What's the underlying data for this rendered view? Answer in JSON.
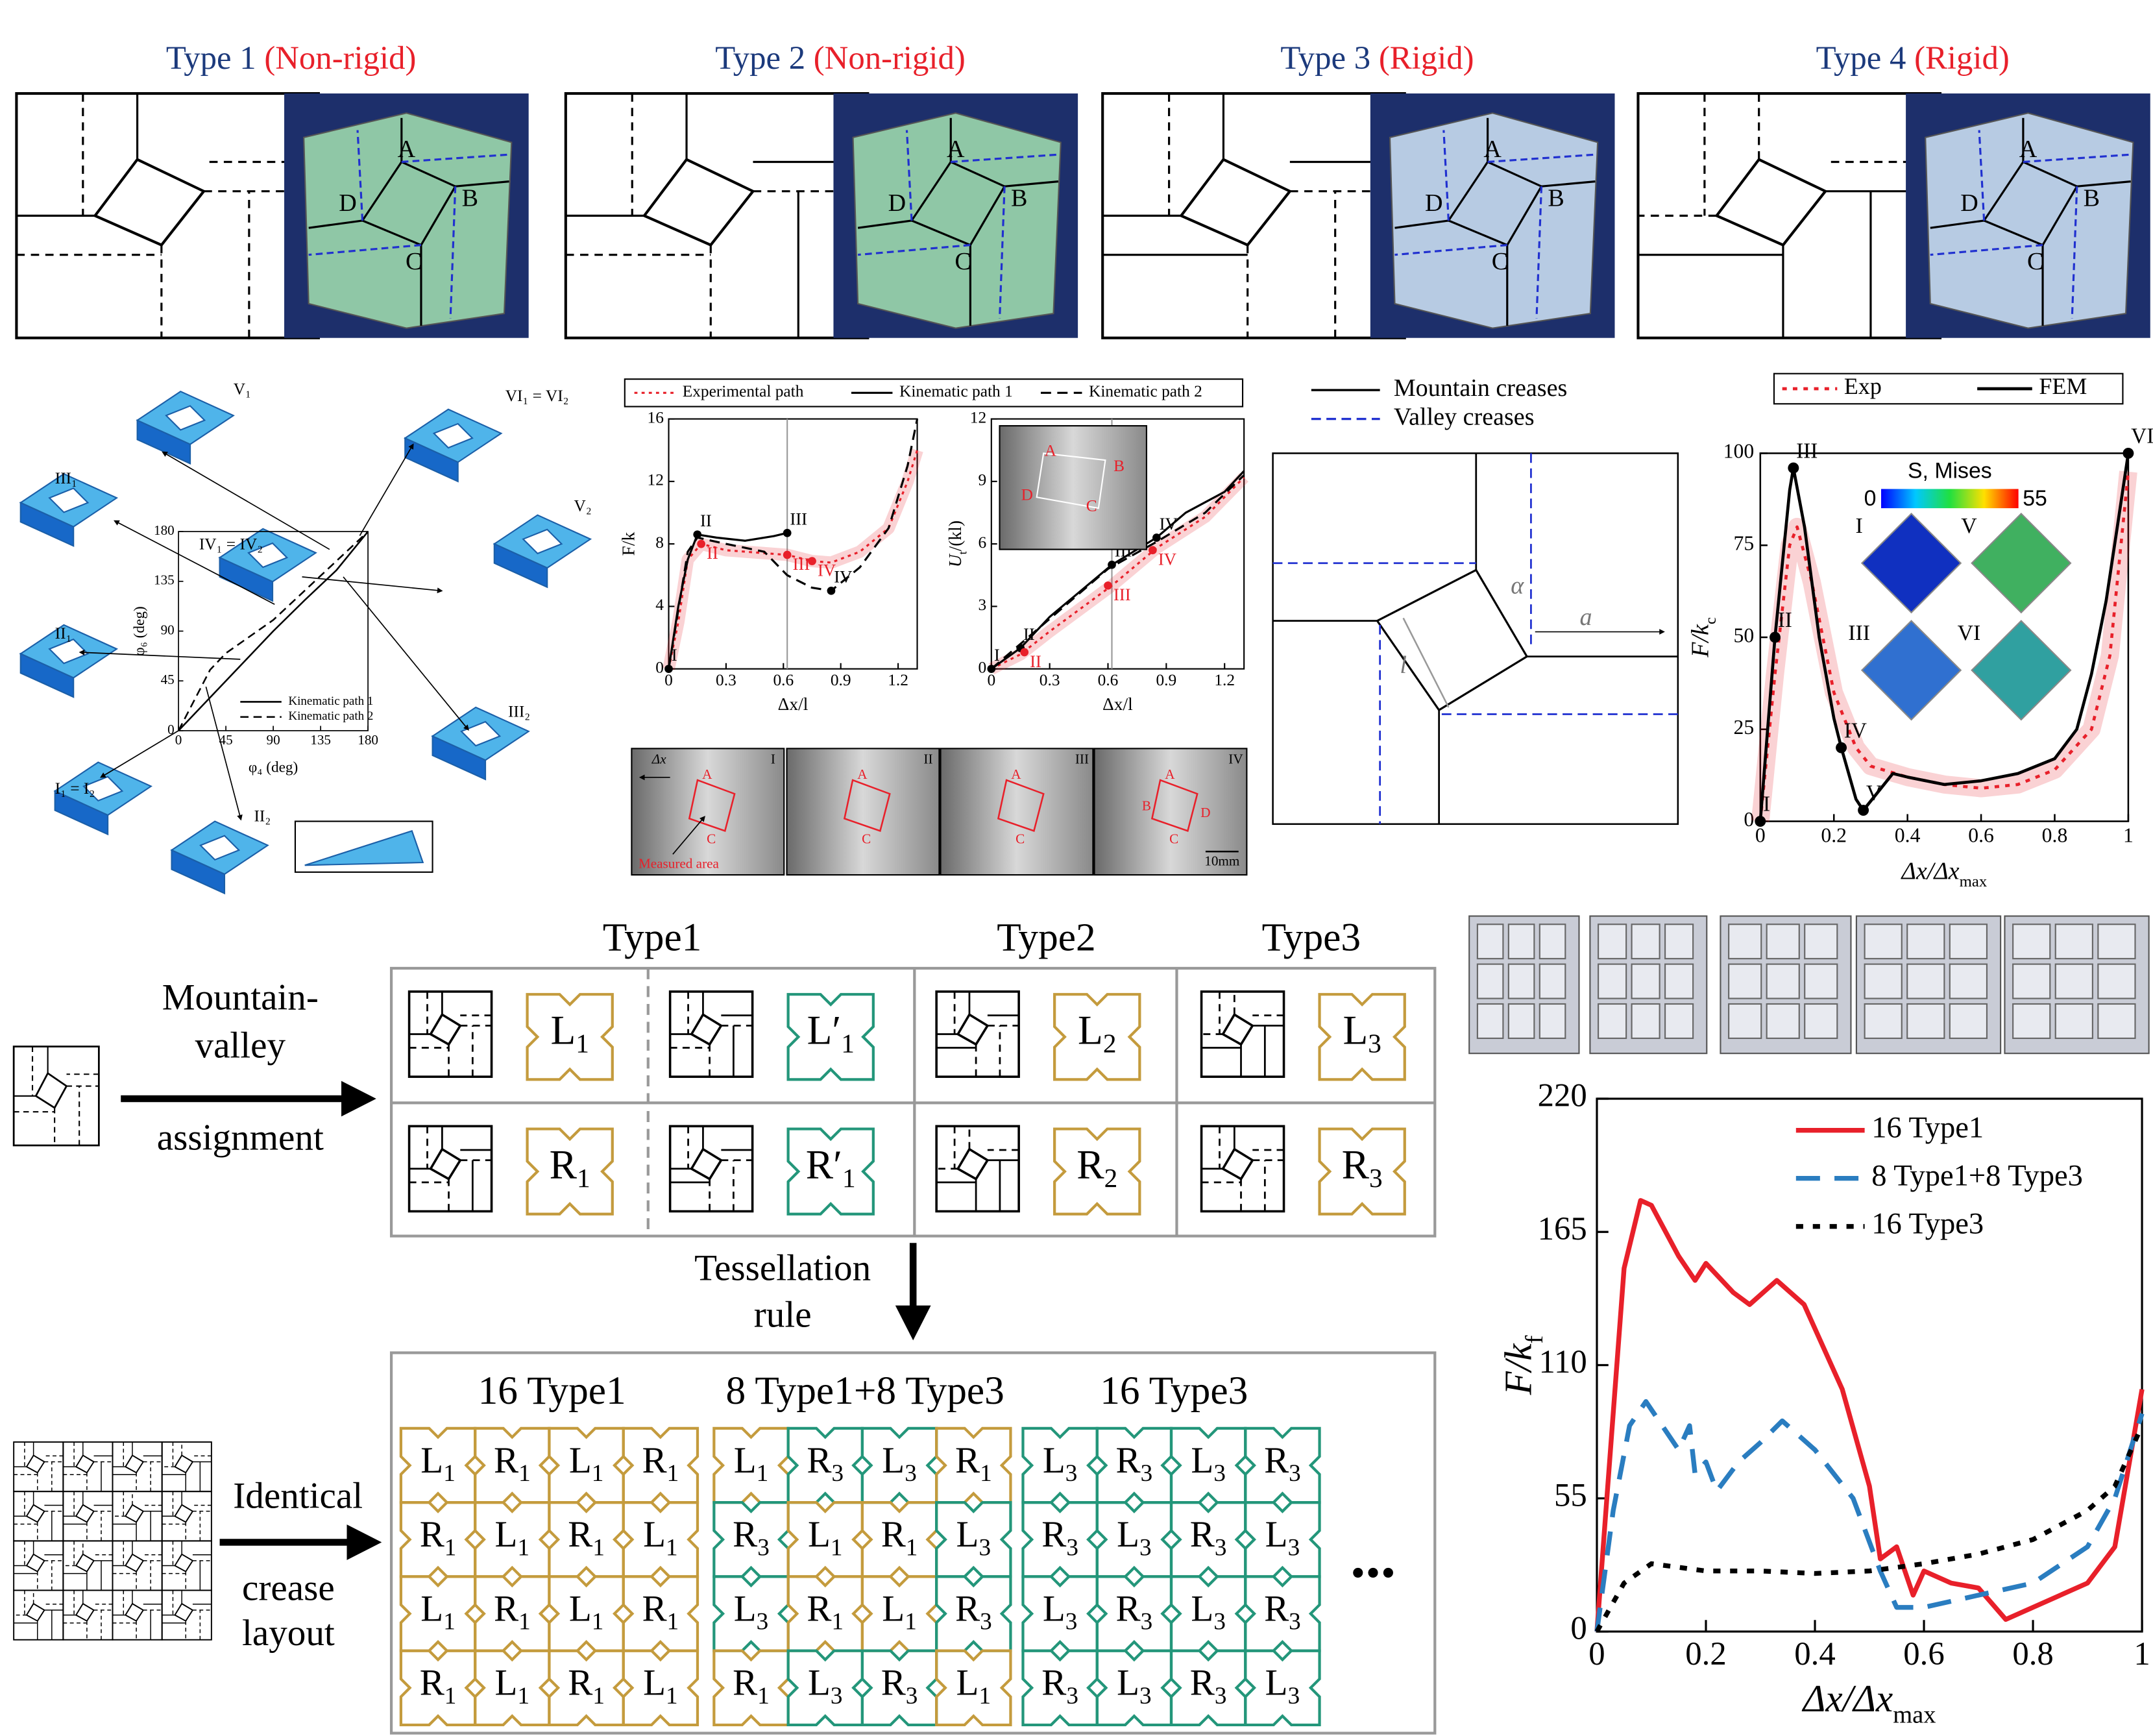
{
  "top_types": [
    {
      "name": "Type 1",
      "mode": "(Non-rigid)",
      "color": "#8fc7a6",
      "labels": [
        "A",
        "B",
        "C",
        "D"
      ]
    },
    {
      "name": "Type 2",
      "mode": "(Non-rigid)",
      "color": "#8fc7a6",
      "labels": [
        "A",
        "B",
        "C",
        "D"
      ]
    },
    {
      "name": "Type 3",
      "mode": "(Rigid)",
      "color": "#b7cbe3",
      "labels": [
        "A",
        "B",
        "C",
        "D"
      ]
    },
    {
      "name": "Type 4",
      "mode": "(Rigid)",
      "color": "#b7cbe3",
      "labels": [
        "A",
        "B",
        "C",
        "D"
      ]
    }
  ],
  "kinematic_labels": [
    "V₁",
    "VI₁ = VI₂",
    "III₁",
    "IV₁ = IV₂",
    "V₂",
    "II₁",
    "III₂",
    "I₁ = I₂",
    "II₂"
  ],
  "strip": {
    "frames": [
      "I",
      "II",
      "III",
      "IV"
    ],
    "measured": "Measured area",
    "scale": "10mm",
    "dx": "Δx",
    "points": [
      "A",
      "B",
      "C",
      "D"
    ]
  },
  "crease_diagram": {
    "legend": [
      "Mountain creases",
      "Valley creases"
    ],
    "alpha": "α",
    "a": "a",
    "l": "l"
  },
  "fem_inset": {
    "colorbar_title": "S, Mises",
    "colorbar_min": 0,
    "colorbar_max": 55,
    "insets": [
      "I",
      "V",
      "III",
      "VI"
    ]
  },
  "assignment": {
    "arrow_text": [
      "Mountain-",
      "valley",
      "assignment"
    ],
    "headings": [
      "Type1",
      "Type2",
      "Type3"
    ],
    "tiles": [
      [
        {
          "l": "L",
          "s": "1",
          "c": "#c49b3d"
        },
        {
          "l": "L′",
          "s": "1",
          "c": "#23967a"
        },
        {
          "l": "L",
          "s": "2",
          "c": "#c49b3d"
        },
        {
          "l": "L",
          "s": "3",
          "c": "#c49b3d"
        }
      ],
      [
        {
          "l": "R",
          "s": "1",
          "c": "#c49b3d"
        },
        {
          "l": "R′",
          "s": "1",
          "c": "#23967a"
        },
        {
          "l": "R",
          "s": "2",
          "c": "#c49b3d"
        },
        {
          "l": "R",
          "s": "3",
          "c": "#c49b3d"
        }
      ]
    ]
  },
  "tessellation": {
    "text": [
      "Tessellation",
      "rule"
    ]
  },
  "layout": {
    "text": [
      "Identical",
      "crease",
      "layout"
    ],
    "ellipsis": "...",
    "tile_color": {
      "1": "#c49b3d",
      "3": "#23967a"
    },
    "grids": [
      {
        "title": "16 Type1",
        "rows": [
          [
            [
              "L",
              "1"
            ],
            [
              "R",
              "1"
            ],
            [
              "L",
              "1"
            ],
            [
              "R",
              "1"
            ]
          ],
          [
            [
              "R",
              "1"
            ],
            [
              "L",
              "1"
            ],
            [
              "R",
              "1"
            ],
            [
              "L",
              "1"
            ]
          ],
          [
            [
              "L",
              "1"
            ],
            [
              "R",
              "1"
            ],
            [
              "L",
              "1"
            ],
            [
              "R",
              "1"
            ]
          ],
          [
            [
              "R",
              "1"
            ],
            [
              "L",
              "1"
            ],
            [
              "R",
              "1"
            ],
            [
              "L",
              "1"
            ]
          ]
        ]
      },
      {
        "title": "8 Type1+8 Type3",
        "rows": [
          [
            [
              "L",
              "1"
            ],
            [
              "R",
              "3"
            ],
            [
              "L",
              "3"
            ],
            [
              "R",
              "1"
            ]
          ],
          [
            [
              "R",
              "3"
            ],
            [
              "L",
              "1"
            ],
            [
              "R",
              "1"
            ],
            [
              "L",
              "3"
            ]
          ],
          [
            [
              "L",
              "3"
            ],
            [
              "R",
              "1"
            ],
            [
              "L",
              "1"
            ],
            [
              "R",
              "3"
            ]
          ],
          [
            [
              "R",
              "1"
            ],
            [
              "L",
              "3"
            ],
            [
              "R",
              "3"
            ],
            [
              "L",
              "1"
            ]
          ]
        ]
      },
      {
        "title": "16 Type3",
        "rows": [
          [
            [
              "L",
              "3"
            ],
            [
              "R",
              "3"
            ],
            [
              "L",
              "3"
            ],
            [
              "R",
              "3"
            ]
          ],
          [
            [
              "R",
              "3"
            ],
            [
              "L",
              "3"
            ],
            [
              "R",
              "3"
            ],
            [
              "L",
              "3"
            ]
          ],
          [
            [
              "L",
              "3"
            ],
            [
              "R",
              "3"
            ],
            [
              "L",
              "3"
            ],
            [
              "R",
              "3"
            ]
          ],
          [
            [
              "R",
              "3"
            ],
            [
              "L",
              "3"
            ],
            [
              "R",
              "3"
            ],
            [
              "L",
              "3"
            ]
          ]
        ]
      }
    ]
  },
  "chart_data": [
    {
      "type": "line",
      "xlabel": "φ₄ (deg)",
      "ylabel": "φ₆ (deg)",
      "xlim": [
        0,
        180
      ],
      "ylim": [
        0,
        180
      ],
      "xticks": [
        0,
        45,
        90,
        135,
        180
      ],
      "yticks": [
        0,
        45,
        90,
        135,
        180
      ],
      "legend": "lower right",
      "series": [
        {
          "name": "Kinematic path 1",
          "color": "#000000",
          "dash": "solid",
          "x": [
            0,
            45,
            90,
            120,
            150,
            180
          ],
          "values": [
            0,
            45,
            90,
            118,
            145,
            180
          ]
        },
        {
          "name": "Kinematic path 2",
          "color": "#000000",
          "dash": "dashed",
          "x": [
            0,
            30,
            45,
            90,
            135,
            180
          ],
          "values": [
            0,
            55,
            70,
            100,
            140,
            180
          ]
        }
      ]
    },
    {
      "type": "line",
      "xlabel": "Δx/l",
      "ylabel": "F/k",
      "xlim": [
        0,
        1.3
      ],
      "ylim": [
        0,
        16
      ],
      "xticks": [
        0,
        0.3,
        0.6,
        0.9,
        1.2
      ],
      "yticks": [
        0,
        4,
        8,
        12,
        16
      ],
      "vline": 0.62,
      "legend": "above",
      "series": [
        {
          "name": "Experimental path",
          "color": "#e8202a",
          "dash": "dotted",
          "band": true,
          "x": [
            0,
            0.05,
            0.1,
            0.17,
            0.3,
            0.62,
            0.75,
            0.85,
            1.0,
            1.15,
            1.25,
            1.3
          ],
          "values": [
            0,
            3,
            7,
            8,
            7.6,
            7.3,
            6.9,
            6.8,
            7.5,
            9,
            12,
            14
          ]
        },
        {
          "name": "Kinematic path 1",
          "color": "#000000",
          "dash": "solid",
          "x": [
            0,
            0.05,
            0.1,
            0.15,
            0.25,
            0.4,
            0.55,
            0.62
          ],
          "values": [
            0,
            4,
            7,
            8.6,
            8.4,
            8.2,
            8.5,
            8.7
          ]
        },
        {
          "name": "Kinematic path 2",
          "color": "#000000",
          "dash": "dashed",
          "x": [
            0,
            0.1,
            0.15,
            0.3,
            0.5,
            0.62,
            0.75,
            0.85,
            1.0,
            1.15,
            1.25,
            1.3
          ],
          "values": [
            0,
            7.5,
            8.4,
            8,
            7.5,
            6,
            5.2,
            5,
            6.5,
            9,
            13,
            16
          ]
        }
      ],
      "points": [
        {
          "label": "I",
          "x": 0,
          "y": 0,
          "color": "#000000"
        },
        {
          "label": "II",
          "x": 0.15,
          "y": 8.6,
          "color": "#000000"
        },
        {
          "label": "III",
          "x": 0.62,
          "y": 8.7,
          "color": "#000000"
        },
        {
          "label": "IV",
          "x": 0.85,
          "y": 5,
          "color": "#000000"
        },
        {
          "label": "II",
          "x": 0.17,
          "y": 8,
          "color": "#e8202a"
        },
        {
          "label": "III",
          "x": 0.62,
          "y": 7.3,
          "color": "#e8202a"
        },
        {
          "label": "IV",
          "x": 0.75,
          "y": 6.9,
          "color": "#e8202a"
        }
      ]
    },
    {
      "type": "line",
      "xlabel": "Δx/l",
      "ylabel": {
        "text": "U",
        "sub": "t",
        "tail": "/(kl)"
      },
      "xlim": [
        0,
        1.3
      ],
      "ylim": [
        0,
        12
      ],
      "xticks": [
        0,
        0.3,
        0.6,
        0.9,
        1.2
      ],
      "yticks": [
        0,
        3,
        6,
        9,
        12
      ],
      "vline": 0.62,
      "series": [
        {
          "color": "#e8202a",
          "dash": "dotted",
          "band": true,
          "x": [
            0,
            0.15,
            0.3,
            0.62,
            0.85,
            1.1,
            1.3
          ],
          "values": [
            0,
            0.7,
            1.8,
            4,
            5.8,
            7.3,
            9.2
          ]
        },
        {
          "color": "#000000",
          "dash": "solid",
          "x": [
            0,
            0.15,
            0.3,
            0.62,
            0.85,
            1.0,
            1.2,
            1.3
          ],
          "values": [
            0,
            1,
            2.5,
            5,
            6.3,
            7.5,
            8.5,
            9.5
          ]
        },
        {
          "color": "#000000",
          "dash": "dashed",
          "x": [
            0,
            0.6,
            0.85,
            1.1,
            1.3
          ],
          "values": [
            0,
            4.8,
            6.1,
            7.5,
            9.3
          ]
        }
      ],
      "points": [
        {
          "label": "I",
          "x": 0,
          "y": 0,
          "color": "#000000"
        },
        {
          "label": "II",
          "x": 0.15,
          "y": 1,
          "color": "#000000"
        },
        {
          "label": "III",
          "x": 0.62,
          "y": 5,
          "color": "#000000"
        },
        {
          "label": "IV",
          "x": 0.85,
          "y": 6.3,
          "color": "#000000"
        },
        {
          "label": "II",
          "x": 0.17,
          "y": 0.8,
          "color": "#e8202a"
        },
        {
          "label": "III",
          "x": 0.6,
          "y": 4,
          "color": "#e8202a"
        },
        {
          "label": "IV",
          "x": 0.83,
          "y": 5.7,
          "color": "#e8202a"
        }
      ]
    },
    {
      "type": "line",
      "xlabel": {
        "text": "Δx/Δx",
        "sub": "max"
      },
      "ylabel": {
        "text": "F/k",
        "sub": "c"
      },
      "xlim": [
        0,
        1
      ],
      "ylim": [
        0,
        100
      ],
      "xticks": [
        0,
        0.2,
        0.4,
        0.6,
        0.8,
        1
      ],
      "yticks": [
        0,
        25,
        50,
        75,
        100
      ],
      "legend": "above",
      "series": [
        {
          "name": "Exp",
          "color": "#e8202a",
          "dash": "dotted",
          "band": true,
          "x": [
            0,
            0.04,
            0.08,
            0.1,
            0.14,
            0.2,
            0.26,
            0.3,
            0.4,
            0.5,
            0.6,
            0.7,
            0.8,
            0.9,
            0.95,
            1
          ],
          "values": [
            0,
            40,
            75,
            80,
            65,
            35,
            20,
            15,
            12,
            10,
            9,
            10,
            14,
            25,
            45,
            95
          ]
        },
        {
          "name": "FEM",
          "color": "#000000",
          "dash": "solid",
          "x": [
            0,
            0.04,
            0.08,
            0.09,
            0.12,
            0.16,
            0.2,
            0.22,
            0.26,
            0.28,
            0.32,
            0.36,
            0.4,
            0.5,
            0.6,
            0.7,
            0.8,
            0.86,
            0.9,
            0.94,
            0.97,
            1
          ],
          "values": [
            0,
            50,
            90,
            96,
            80,
            50,
            28,
            20,
            6,
            3,
            8,
            13,
            12,
            10,
            11,
            13,
            17,
            25,
            40,
            60,
            80,
            100
          ]
        }
      ],
      "points": [
        {
          "label": "I",
          "x": 0,
          "y": 0,
          "color": "#000000"
        },
        {
          "label": "II",
          "x": 0.04,
          "y": 50,
          "color": "#000000"
        },
        {
          "label": "III",
          "x": 0.09,
          "y": 96,
          "color": "#000000"
        },
        {
          "label": "IV",
          "x": 0.22,
          "y": 20,
          "color": "#000000"
        },
        {
          "label": "V",
          "x": 0.28,
          "y": 3,
          "color": "#000000"
        },
        {
          "label": "VI",
          "x": 1,
          "y": 100,
          "color": "#000000"
        }
      ]
    },
    {
      "type": "line",
      "xlabel": {
        "text": "Δx/Δx",
        "sub": "max"
      },
      "ylabel": {
        "text": "F/k",
        "sub": "f"
      },
      "xlim": [
        0,
        1
      ],
      "ylim": [
        0,
        220
      ],
      "xticks": [
        0,
        0.2,
        0.4,
        0.6,
        0.8,
        1
      ],
      "yticks": [
        0,
        55,
        110,
        165,
        220
      ],
      "legend": "upper right",
      "series": [
        {
          "name": "16 Type1",
          "color": "#e8202a",
          "dash": "solid",
          "x": [
            0,
            0.02,
            0.05,
            0.08,
            0.1,
            0.15,
            0.18,
            0.2,
            0.25,
            0.28,
            0.33,
            0.38,
            0.45,
            0.5,
            0.52,
            0.55,
            0.58,
            0.6,
            0.65,
            0.7,
            0.75,
            0.8,
            0.9,
            0.95,
            1
          ],
          "values": [
            0,
            60,
            150,
            178,
            176,
            155,
            145,
            152,
            140,
            135,
            145,
            135,
            100,
            60,
            30,
            35,
            15,
            25,
            20,
            18,
            5,
            10,
            20,
            35,
            100
          ]
        },
        {
          "name": "8 Type1+8 Type3",
          "color": "#2a7dc0",
          "dash": "dashed",
          "x": [
            0,
            0.03,
            0.06,
            0.09,
            0.12,
            0.15,
            0.17,
            0.18,
            0.2,
            0.22,
            0.26,
            0.3,
            0.34,
            0.4,
            0.47,
            0.52,
            0.55,
            0.6,
            0.7,
            0.8,
            0.9,
            0.95,
            1
          ],
          "values": [
            0,
            50,
            85,
            95,
            85,
            75,
            85,
            65,
            70,
            58,
            70,
            78,
            87,
            75,
            55,
            25,
            10,
            10,
            15,
            20,
            35,
            55,
            90
          ]
        },
        {
          "name": "16 Type3",
          "color": "#000000",
          "dash": "dotted",
          "x": [
            0,
            0.05,
            0.1,
            0.2,
            0.3,
            0.4,
            0.5,
            0.6,
            0.7,
            0.8,
            0.9,
            0.95,
            1
          ],
          "values": [
            0,
            20,
            28,
            25,
            25,
            24,
            25,
            28,
            32,
            38,
            50,
            60,
            85
          ]
        }
      ]
    }
  ]
}
